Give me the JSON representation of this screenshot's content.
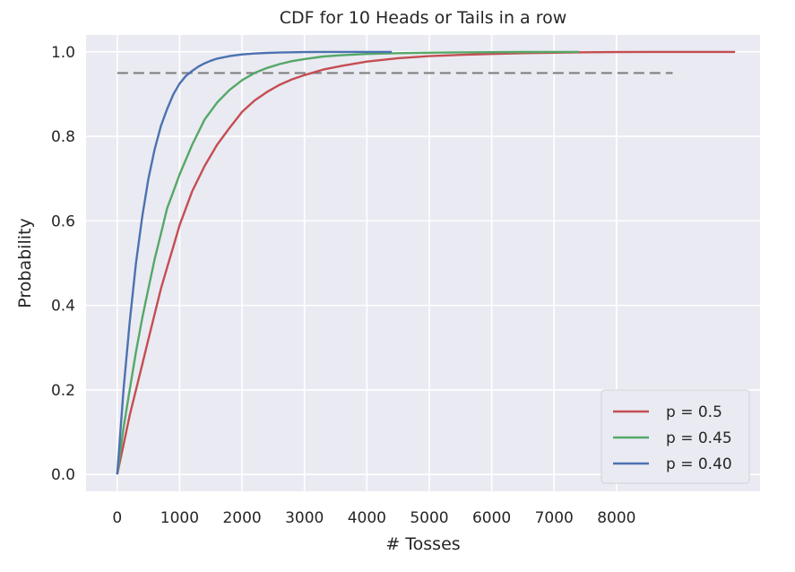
{
  "chart_data": {
    "type": "line",
    "title": "CDF for 10 Heads or Tails in a row",
    "xlabel": "# Tosses",
    "ylabel": "Probability",
    "xlim": [
      -500,
      10300
    ],
    "ylim": [
      -0.04,
      1.04
    ],
    "x_ticks": [
      0,
      1000,
      2000,
      3000,
      4000,
      5000,
      6000,
      7000,
      8000
    ],
    "x_tick_labels": [
      "0",
      "1000",
      "2000",
      "3000",
      "4000",
      "5000",
      "6000",
      "7000",
      "8000"
    ],
    "y_ticks": [
      0.0,
      0.2,
      0.4,
      0.6,
      0.8,
      1.0
    ],
    "y_tick_labels": [
      "0.0",
      "0.2",
      "0.4",
      "0.6",
      "0.8",
      "1.0"
    ],
    "grid": true,
    "background": "#eaeaf2",
    "legend_position": "lower-right",
    "series": [
      {
        "name": "p = 0.5",
        "color": "#c44e52",
        "x": [
          0,
          100,
          200,
          300,
          400,
          500,
          600,
          700,
          800,
          900,
          1000,
          1200,
          1400,
          1600,
          1800,
          2000,
          2200,
          2400,
          2600,
          2800,
          3000,
          3300,
          3600,
          4000,
          4500,
          5000,
          5500,
          6000,
          6500,
          7000,
          7500,
          8000,
          8500,
          9000,
          9500,
          9900
        ],
        "y": [
          0.0,
          0.07,
          0.14,
          0.2,
          0.26,
          0.32,
          0.38,
          0.44,
          0.49,
          0.54,
          0.59,
          0.67,
          0.73,
          0.78,
          0.82,
          0.858,
          0.885,
          0.905,
          0.922,
          0.935,
          0.945,
          0.958,
          0.967,
          0.977,
          0.985,
          0.99,
          0.993,
          0.995,
          0.997,
          0.998,
          0.999,
          0.9995,
          0.9998,
          0.9999,
          1.0,
          1.0
        ]
      },
      {
        "name": "p = 0.45",
        "color": "#55a868",
        "x": [
          0,
          100,
          200,
          300,
          400,
          500,
          600,
          700,
          800,
          900,
          1000,
          1200,
          1400,
          1600,
          1800,
          2000,
          2200,
          2400,
          2600,
          2800,
          3000,
          3300,
          3600,
          4000,
          4500,
          5000,
          5500,
          6000,
          6500,
          7000,
          7400
        ],
        "y": [
          0.0,
          0.11,
          0.2,
          0.29,
          0.37,
          0.44,
          0.51,
          0.57,
          0.63,
          0.67,
          0.71,
          0.78,
          0.84,
          0.88,
          0.91,
          0.933,
          0.95,
          0.962,
          0.971,
          0.978,
          0.983,
          0.989,
          0.992,
          0.995,
          0.997,
          0.998,
          0.9988,
          0.9993,
          0.9996,
          0.9998,
          1.0
        ]
      },
      {
        "name": "p = 0.40",
        "color": "#4c72b0",
        "x": [
          0,
          100,
          200,
          300,
          400,
          500,
          600,
          700,
          800,
          900,
          1000,
          1100,
          1200,
          1300,
          1400,
          1500,
          1600,
          1800,
          2000,
          2200,
          2400,
          2600,
          2800,
          3000,
          3300,
          3600,
          4000,
          4400
        ],
        "y": [
          0.0,
          0.2,
          0.36,
          0.5,
          0.61,
          0.7,
          0.77,
          0.825,
          0.865,
          0.9,
          0.925,
          0.943,
          0.955,
          0.965,
          0.973,
          0.979,
          0.984,
          0.99,
          0.994,
          0.996,
          0.9975,
          0.9985,
          0.999,
          0.9995,
          0.9998,
          0.9999,
          1.0,
          1.0
        ]
      }
    ],
    "reference_line": {
      "y": 0.95,
      "x_range": [
        0,
        8900
      ],
      "style": "dashed",
      "color": "#808080"
    }
  }
}
